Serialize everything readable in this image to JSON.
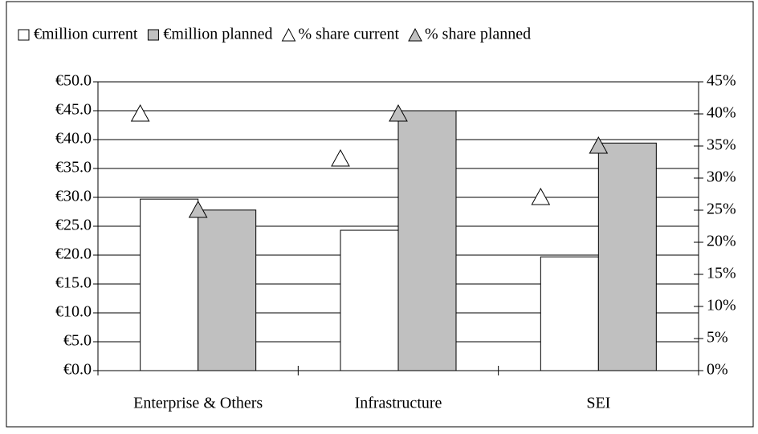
{
  "chart_data": {
    "type": "bar",
    "categories": [
      "Enterprise & Others",
      "Infrastructure",
      "SEI"
    ],
    "series": [
      {
        "name": "€million current",
        "color": "#ffffff",
        "values": [
          29.7,
          24.3,
          19.7
        ]
      },
      {
        "name": "€million planned",
        "color": "#c0c0c0",
        "values": [
          27.8,
          45.0,
          39.4
        ]
      },
      {
        "name": "% share current",
        "color": "#ffffff",
        "axis": "y2",
        "marker": "triangle",
        "values": [
          40,
          33,
          27
        ]
      },
      {
        "name": "% share planned",
        "color": "#c0c0c0",
        "axis": "y2",
        "marker": "triangle",
        "values": [
          25,
          40,
          35
        ]
      }
    ],
    "ylim": [
      0,
      50
    ],
    "yticks": [
      {
        "value": 0,
        "label": "€0.0"
      },
      {
        "value": 5,
        "label": "€5.0"
      },
      {
        "value": 10,
        "label": "€10.0"
      },
      {
        "value": 15,
        "label": "€15.0"
      },
      {
        "value": 20,
        "label": "€20.0"
      },
      {
        "value": 25,
        "label": "€25.0"
      },
      {
        "value": 30,
        "label": "€30.0"
      },
      {
        "value": 35,
        "label": "€35.0"
      },
      {
        "value": 40,
        "label": "€40.0"
      },
      {
        "value": 45,
        "label": "€45.0"
      },
      {
        "value": 50,
        "label": "€50.0"
      }
    ],
    "y2lim": [
      0,
      45
    ],
    "y2ticks": [
      {
        "value": 0,
        "label": "0%"
      },
      {
        "value": 5,
        "label": "5%"
      },
      {
        "value": 10,
        "label": "10%"
      },
      {
        "value": 15,
        "label": "15%"
      },
      {
        "value": 20,
        "label": "20%"
      },
      {
        "value": 25,
        "label": "25%"
      },
      {
        "value": 30,
        "label": "30%"
      },
      {
        "value": 35,
        "label": "35%"
      },
      {
        "value": 40,
        "label": "40%"
      },
      {
        "value": 45,
        "label": "45%"
      }
    ],
    "grid": true,
    "legend": "top"
  }
}
